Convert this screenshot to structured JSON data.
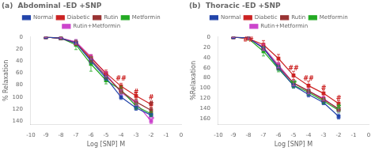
{
  "chart_data": [
    {
      "type": "line",
      "title": "(a)  Abdominal -ED +SNP",
      "x_label": "Log [SNP] M",
      "y_label": "% Relaxation",
      "x": [
        -9,
        -8,
        -7,
        -6,
        -5,
        -4,
        -3,
        -2
      ],
      "series": [
        {
          "name": "Normal",
          "color": "#2244aa",
          "values": [
            0,
            2,
            10,
            40,
            68,
            100,
            118,
            130
          ],
          "errors": [
            1,
            1,
            3,
            4,
            4,
            4,
            4,
            3
          ]
        },
        {
          "name": "Diabetic",
          "color": "#cc2222",
          "values": [
            0,
            2,
            10,
            35,
            60,
            82,
            98,
            112
          ],
          "errors": [
            1,
            2,
            4,
            5,
            5,
            5,
            5,
            5
          ]
        },
        {
          "name": "Rutin",
          "color": "#993333",
          "values": [
            0,
            2,
            10,
            38,
            65,
            90,
            108,
            122
          ],
          "errors": [
            1,
            2,
            3,
            4,
            4,
            4,
            4,
            4
          ]
        },
        {
          "name": "Metformin",
          "color": "#22aa22",
          "values": [
            0,
            2,
            13,
            45,
            72,
            88,
            115,
            128
          ],
          "errors": [
            1,
            2,
            8,
            12,
            6,
            6,
            5,
            4
          ]
        },
        {
          "name": "Rutin+Metformin",
          "color": "#cc44cc",
          "values": [
            0,
            2,
            8,
            33,
            62,
            92,
            110,
            140
          ],
          "errors": [
            1,
            1,
            4,
            4,
            4,
            4,
            4,
            4
          ]
        }
      ],
      "xlim": [
        -10,
        0
      ],
      "xticks": [
        -10,
        -9,
        -8,
        -7,
        -6,
        -5,
        -4,
        -3,
        -2,
        -1,
        0
      ],
      "ylim": [
        145,
        0
      ],
      "yticks": [
        0,
        20,
        40,
        60,
        80,
        100,
        120,
        140
      ],
      "annotations": [
        {
          "text": "##",
          "x": -4,
          "y": 75,
          "color": "#cc2222"
        },
        {
          "text": "#",
          "x": -3,
          "y": 97,
          "color": "#cc2222"
        },
        {
          "text": "#",
          "x": -2,
          "y": 107,
          "color": "#cc2222"
        },
        {
          "text": "#",
          "x": -2,
          "y": 117,
          "color": "#993333"
        },
        {
          "text": "**",
          "x": -2,
          "y": 143,
          "color": "#cc44cc"
        }
      ],
      "legend": "top",
      "marker": "square",
      "grid": false
    },
    {
      "type": "line",
      "title": "(b)  Thoracic -ED +SNP",
      "x_label": "Log [SNP] M",
      "y_label": "%Relaxation",
      "x": [
        -9,
        -8,
        -7,
        -6,
        -5,
        -4,
        -3,
        -2
      ],
      "series": [
        {
          "name": "Normal",
          "color": "#2244aa",
          "values": [
            0,
            2,
            22,
            60,
            95,
            112,
            128,
            155
          ],
          "errors": [
            1,
            2,
            4,
            5,
            5,
            5,
            4,
            5
          ]
        },
        {
          "name": "Diabetic",
          "color": "#cc2222",
          "values": [
            0,
            3,
            15,
            42,
            75,
            95,
            110,
            130
          ],
          "errors": [
            1,
            3,
            8,
            8,
            8,
            9,
            7,
            6
          ]
        },
        {
          "name": "Rutin",
          "color": "#993333",
          "values": [
            0,
            2,
            22,
            58,
            90,
            105,
            122,
            140
          ],
          "errors": [
            1,
            2,
            4,
            5,
            5,
            4,
            4,
            4
          ]
        },
        {
          "name": "Metformin",
          "color": "#22aa22",
          "values": [
            0,
            3,
            28,
            62,
            94,
            108,
            125,
            143
          ],
          "errors": [
            1,
            3,
            9,
            6,
            5,
            5,
            5,
            4
          ]
        },
        {
          "name": "Rutin+Metformin",
          "color": "#cc44cc",
          "values": [
            0,
            2,
            20,
            55,
            90,
            106,
            120,
            142
          ],
          "errors": [
            1,
            2,
            6,
            5,
            5,
            5,
            4,
            4
          ]
        }
      ],
      "xlim": [
        -10,
        0
      ],
      "xticks": [
        -10,
        -9,
        -8,
        -7,
        -6,
        -5,
        -4,
        -3,
        -2,
        -1,
        0
      ],
      "ylim": [
        170,
        0
      ],
      "yticks": [
        0,
        20,
        40,
        60,
        80,
        100,
        120,
        140,
        160
      ],
      "annotations": [
        {
          "text": "##",
          "x": -8,
          "y": 12,
          "color": "#cc2222"
        },
        {
          "text": "##",
          "x": -5,
          "y": 68,
          "color": "#cc2222"
        },
        {
          "text": "##",
          "x": -4,
          "y": 88,
          "color": "#cc2222"
        },
        {
          "text": "#",
          "x": -3,
          "y": 106,
          "color": "#cc2222"
        },
        {
          "text": "#",
          "x": -2,
          "y": 126,
          "color": "#cc2222"
        },
        {
          "text": "**",
          "x": -5,
          "y": 97,
          "color": "#22aa22"
        },
        {
          "text": "#",
          "x": -2,
          "y": 144,
          "color": "#22aa22"
        }
      ],
      "legend": "top",
      "marker": "square",
      "grid": false
    }
  ]
}
